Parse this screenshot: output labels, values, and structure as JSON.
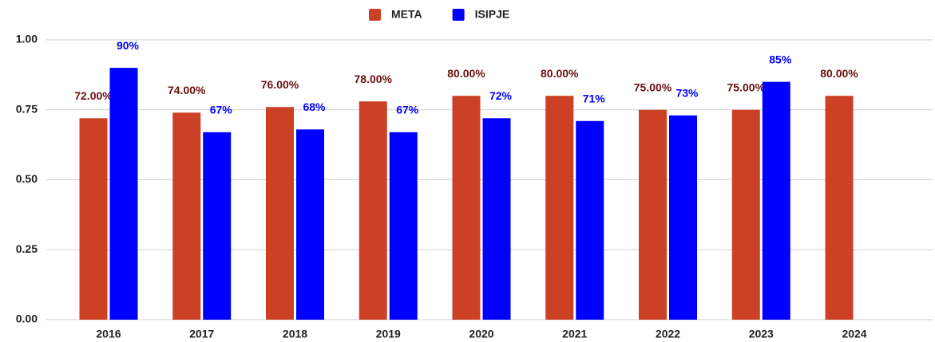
{
  "chart_data": {
    "type": "bar",
    "categories": [
      "2016",
      "2017",
      "2018",
      "2019",
      "2020",
      "2021",
      "2022",
      "2023",
      "2024"
    ],
    "series": [
      {
        "name": "META",
        "color": "#cc4125",
        "label_color": "#6b1010",
        "values": [
          0.72,
          0.74,
          0.76,
          0.78,
          0.8,
          0.8,
          0.75,
          0.75,
          0.8
        ],
        "value_labels": [
          "72.00%",
          "74.00%",
          "76.00%",
          "78.00%",
          "80.00%",
          "80.00%",
          "75.00%",
          "75.00%",
          "80.00%"
        ]
      },
      {
        "name": "ISIPJE",
        "color": "#0000ff",
        "label_color": "#0000ff",
        "values": [
          0.9,
          0.67,
          0.68,
          0.67,
          0.72,
          0.71,
          0.73,
          0.85,
          null
        ],
        "value_labels": [
          "90%",
          "67%",
          "68%",
          "67%",
          "72%",
          "71%",
          "73%",
          "85%",
          null
        ]
      }
    ],
    "ylim": [
      0,
      1
    ],
    "yticks": [
      {
        "value": 0,
        "label": "0.00"
      },
      0.25,
      {
        "value": 0.5,
        "label": "0.50"
      },
      0.75,
      {
        "value": 1,
        "label": "1.00"
      }
    ],
    "grid": true,
    "legend": "top"
  }
}
